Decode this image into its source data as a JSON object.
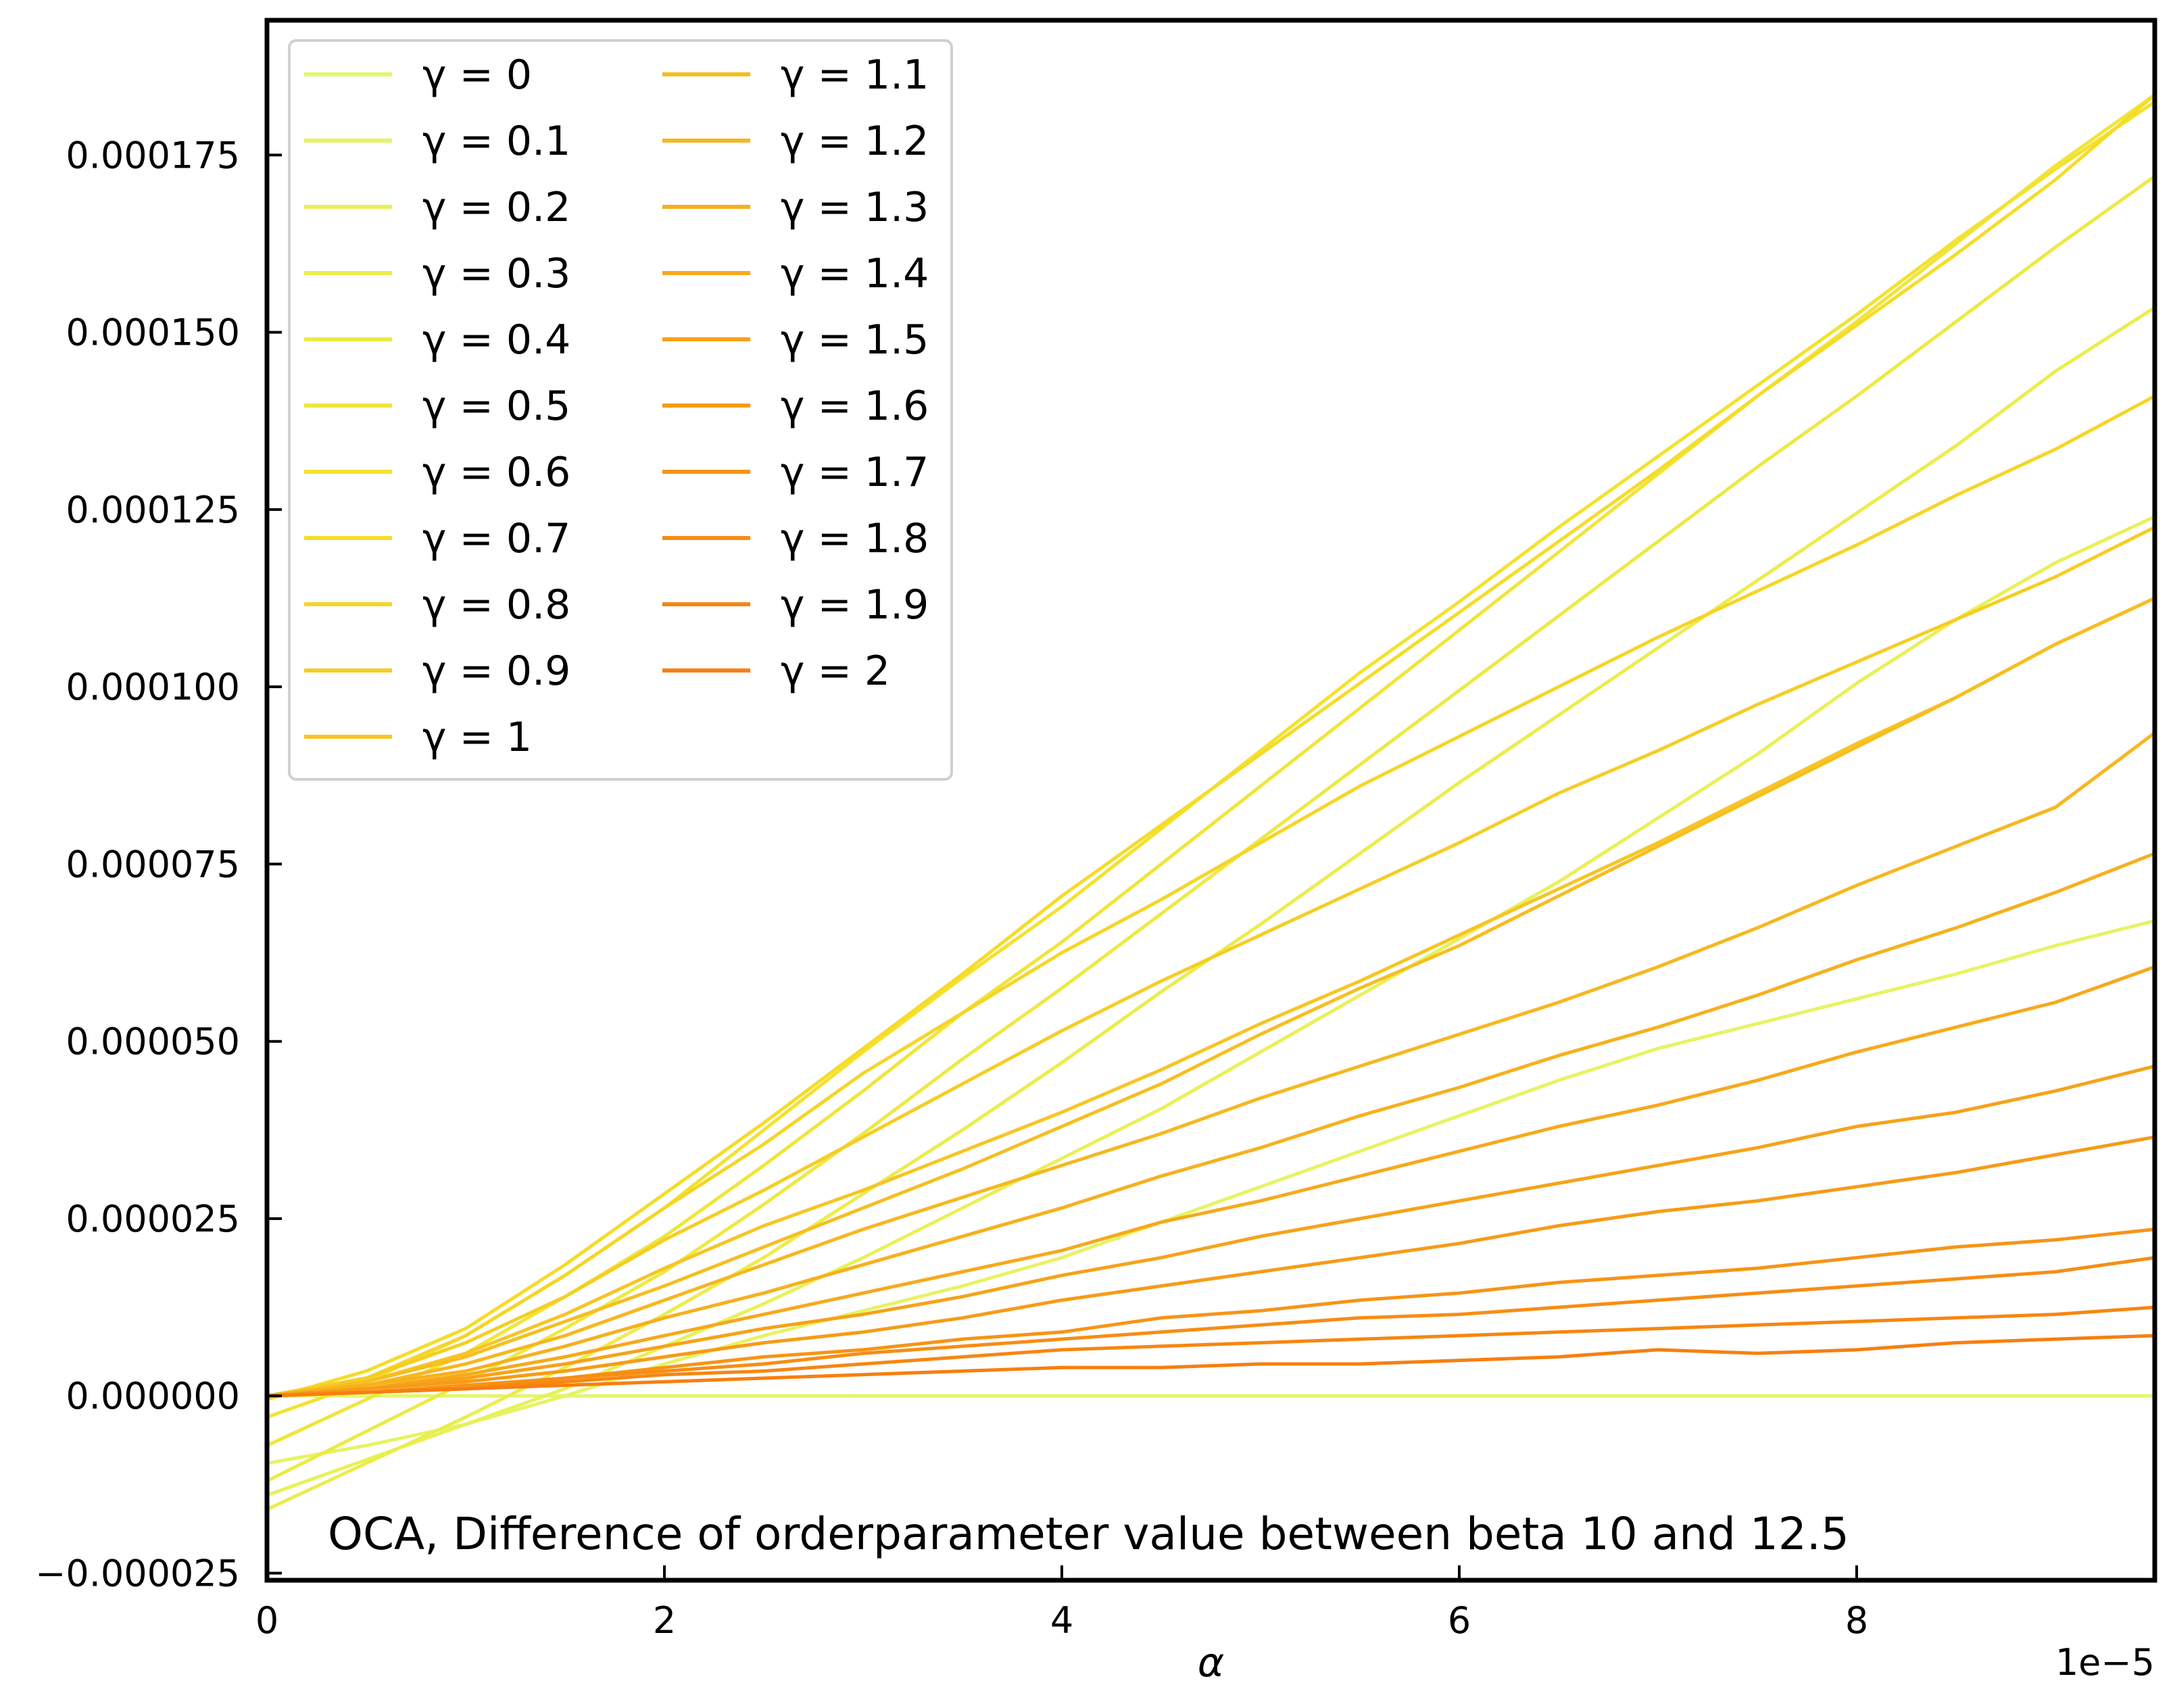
{
  "chart_data": {
    "type": "line",
    "title": "",
    "annotation": "OCA, Difference of orderparameter value between beta 10 and 12.5",
    "xlabel": "α",
    "ylabel": "",
    "x_offset_label": "1e−5",
    "xlim": [
      0,
      9.5
    ],
    "ylim": [
      -2.6e-05,
      0.000194
    ],
    "x_ticks": [
      0,
      2,
      4,
      6,
      8
    ],
    "x_tick_labels": [
      "0",
      "2",
      "4",
      "6",
      "8"
    ],
    "y_ticks": [
      -2.5e-05,
      0,
      2.5e-05,
      5e-05,
      7.5e-05,
      0.0001,
      0.000125,
      0.00015,
      0.000175
    ],
    "y_tick_labels": [
      "−0.000025",
      "0.000000",
      "0.000025",
      "0.000050",
      "0.000075",
      "0.000100",
      "0.000125",
      "0.000150",
      "0.000175"
    ],
    "grid": false,
    "legend_position": "top-left",
    "legend_columns": 2,
    "x": [
      0,
      0.5,
      1,
      1.5,
      2,
      2.5,
      3,
      3.5,
      4,
      4.5,
      5,
      5.5,
      6,
      6.5,
      7,
      7.5,
      8,
      8.5,
      9,
      9.5
    ],
    "series": [
      {
        "name": "γ = 0",
        "color": "#e3f66c",
        "values": [
          0.0,
          0.0,
          0.0,
          0.0,
          0.0,
          0.0,
          0.0,
          0.0,
          0.0,
          0.0,
          0.0,
          0.0,
          0.0,
          0.0,
          0.0,
          0.0,
          0.0,
          0.0,
          0.0,
          0.0
        ]
      },
      {
        "name": "γ = 0.1",
        "color": "#e6f462",
        "values": [
          -9.5e-06,
          -7e-06,
          -4e-06,
          0.0,
          4.5e-06,
          8.5e-06,
          1.2e-05,
          1.55e-05,
          1.95e-05,
          2.45e-05,
          2.95e-05,
          3.45e-05,
          3.95e-05,
          4.45e-05,
          4.9e-05,
          5.25e-05,
          5.6e-05,
          5.95e-05,
          6.35e-05,
          6.7e-05
        ]
      },
      {
        "name": "γ = 0.2",
        "color": "#e9f157",
        "values": [
          -1.4e-05,
          -9e-06,
          -4e-06,
          1e-06,
          7e-06,
          1.3e-05,
          1.95e-05,
          2.65e-05,
          3.35e-05,
          4.05e-05,
          4.85e-05,
          5.65e-05,
          6.45e-05,
          7.25e-05,
          8.15e-05,
          9.05e-05,
          0.0001005,
          0.0001095,
          0.0001175,
          0.000124
        ]
      },
      {
        "name": "γ = 0.3",
        "color": "#ebed4c",
        "values": [
          -1.6e-05,
          -9.5e-06,
          -3e-06,
          4e-06,
          1.15e-05,
          1.95e-05,
          2.85e-05,
          3.75e-05,
          4.7e-05,
          5.7e-05,
          6.65e-05,
          7.65e-05,
          8.65e-05,
          9.6e-05,
          0.0001055,
          0.000115,
          0.0001245,
          0.000134,
          0.0001445,
          0.0001535
        ]
      },
      {
        "name": "γ = 0.4",
        "color": "#ede944",
        "values": [
          -1.2e-05,
          -5e-06,
          2e-06,
          9.5e-06,
          1.75e-05,
          2.7e-05,
          3.7e-05,
          4.75e-05,
          5.75e-05,
          6.8e-05,
          7.85e-05,
          8.9e-05,
          9.95e-05,
          0.00011,
          0.0001205,
          0.000131,
          0.000141,
          0.0001515,
          0.000162,
          0.000172
        ]
      },
      {
        "name": "γ = 0.5",
        "color": "#f0e53a",
        "values": [
          -7e-06,
          -5e-07,
          6e-06,
          1.4e-05,
          2.25e-05,
          3.25e-05,
          4.3e-05,
          5.4e-05,
          6.4e-05,
          7.5e-05,
          8.6e-05,
          9.7e-05,
          0.000108,
          0.000119,
          0.00013,
          0.000141,
          0.0001515,
          0.0001625,
          0.0001735,
          0.0001835
        ]
      },
      {
        "name": "γ = 0.6",
        "color": "#f3e22e",
        "values": [
          -3e-06,
          2e-06,
          8.5e-06,
          1.7e-05,
          2.65e-05,
          3.75e-05,
          4.85e-05,
          5.9e-05,
          6.9e-05,
          8e-05,
          9.1e-05,
          0.000102,
          0.000112,
          0.0001225,
          0.0001325,
          0.0001425,
          0.0001525,
          0.000163,
          0.000173,
          0.0001825
        ]
      },
      {
        "name": "γ = 0.7",
        "color": "#f5dc28",
        "values": [
          -5e-07,
          3.5e-06,
          9.5e-06,
          1.85e-05,
          2.85e-05,
          3.85e-05,
          4.9e-05,
          5.95e-05,
          7.05e-05,
          8.05e-05,
          9.05e-05,
          0.0001005,
          0.0001105,
          0.0001205,
          0.0001305,
          0.000141,
          0.000151,
          0.000161,
          0.0001715,
          0.0001835
        ]
      },
      {
        "name": "γ = 0.8",
        "color": "#f6d526",
        "values": [
          0.0,
          2.5e-06,
          8.5e-06,
          1.7e-05,
          2.65e-05,
          3.55e-05,
          4.55e-05,
          5.4e-05,
          6.25e-05,
          7e-05,
          7.8e-05,
          8.6e-05,
          9.3e-05,
          0.0001,
          0.000107,
          0.0001135,
          0.00012,
          0.000127,
          0.0001335,
          0.000141
        ]
      },
      {
        "name": "γ = 0.9",
        "color": "#f6cd24",
        "values": [
          0.0,
          2.5e-06,
          7.5e-06,
          1.4e-05,
          2.2e-05,
          2.9e-05,
          3.65e-05,
          4.4e-05,
          5.15e-05,
          5.85e-05,
          6.5e-05,
          7.15e-05,
          7.8e-05,
          8.5e-05,
          9.1e-05,
          9.75e-05,
          0.0001035,
          0.0001095,
          0.0001155,
          0.0001225
        ]
      },
      {
        "name": "γ = 1",
        "color": "#f7c523",
        "values": [
          0.0,
          2e-06,
          6e-06,
          1.15e-05,
          1.8e-05,
          2.4e-05,
          2.9e-05,
          3.45e-05,
          4e-05,
          4.6e-05,
          5.25e-05,
          5.85e-05,
          6.5e-05,
          7.15e-05,
          7.8e-05,
          8.5e-05,
          9.2e-05,
          9.85e-05,
          0.000106,
          0.0001125
        ]
      },
      {
        "name": "γ = 1.1",
        "color": "#f7be21",
        "values": [
          0.0,
          2e-06,
          5.5e-06,
          1.05e-05,
          1.55e-05,
          2.1e-05,
          2.65e-05,
          3.2e-05,
          3.8e-05,
          4.4e-05,
          5.1e-05,
          5.75e-05,
          6.35e-05,
          7.05e-05,
          7.75e-05,
          8.45e-05,
          9.15e-05,
          9.85e-05,
          0.000106,
          0.0001125
        ]
      },
      {
        "name": "γ = 1.2",
        "color": "#f7b71f",
        "values": [
          0.0,
          1.5e-06,
          4.5e-06,
          8.5e-06,
          1.35e-05,
          1.85e-05,
          2.35e-05,
          2.8e-05,
          3.25e-05,
          3.7e-05,
          4.2e-05,
          4.65e-05,
          5.1e-05,
          5.55e-05,
          6.05e-05,
          6.6e-05,
          7.2e-05,
          7.75e-05,
          8.3e-05,
          9.35e-05
        ]
      },
      {
        "name": "γ = 1.3",
        "color": "#f7b01d",
        "values": [
          0.0,
          1.5e-06,
          3.5e-06,
          7e-06,
          1.1e-05,
          1.45e-05,
          1.85e-05,
          2.25e-05,
          2.65e-05,
          3.1e-05,
          3.5e-05,
          3.95e-05,
          4.35e-05,
          4.8e-05,
          5.2e-05,
          5.65e-05,
          6.15e-05,
          6.6e-05,
          7.1e-05,
          7.65e-05
        ]
      },
      {
        "name": "γ = 1.4",
        "color": "#f7a91b",
        "values": [
          0.0,
          1e-06,
          3e-06,
          5.5e-06,
          8.5e-06,
          1.15e-05,
          1.45e-05,
          1.75e-05,
          2.05e-05,
          2.45e-05,
          2.75e-05,
          3.1e-05,
          3.45e-05,
          3.8e-05,
          4.1e-05,
          4.45e-05,
          4.85e-05,
          5.2e-05,
          5.55e-05,
          6.05e-05
        ]
      },
      {
        "name": "γ = 1.5",
        "color": "#f7a219",
        "values": [
          0.0,
          1e-06,
          2.5e-06,
          4.5e-06,
          7e-06,
          9.5e-06,
          1.15e-05,
          1.4e-05,
          1.7e-05,
          1.95e-05,
          2.25e-05,
          2.5e-05,
          2.75e-05,
          3e-05,
          3.25e-05,
          3.5e-05,
          3.8e-05,
          4e-05,
          4.3e-05,
          4.65e-05
        ]
      },
      {
        "name": "γ = 1.6",
        "color": "#f79b17",
        "values": [
          0.0,
          1e-06,
          2e-06,
          3.5e-06,
          5.5e-06,
          7.5e-06,
          9e-06,
          1.1e-05,
          1.35e-05,
          1.55e-05,
          1.75e-05,
          1.95e-05,
          2.15e-05,
          2.4e-05,
          2.6e-05,
          2.75e-05,
          2.95e-05,
          3.15e-05,
          3.4e-05,
          3.65e-05
        ]
      },
      {
        "name": "γ = 1.7",
        "color": "#f79416",
        "values": [
          0.0,
          5e-07,
          1.5e-06,
          2.5e-06,
          4e-06,
          5.5e-06,
          6.5e-06,
          8e-06,
          9e-06,
          1.1e-05,
          1.2e-05,
          1.35e-05,
          1.45e-05,
          1.6e-05,
          1.7e-05,
          1.8e-05,
          1.95e-05,
          2.1e-05,
          2.2e-05,
          2.35e-05
        ]
      },
      {
        "name": "γ = 1.8",
        "color": "#f78d14",
        "values": [
          0.0,
          5e-07,
          1e-06,
          2.5e-06,
          3.5e-06,
          4.5e-06,
          6e-06,
          7e-06,
          8e-06,
          9e-06,
          1e-05,
          1.1e-05,
          1.15e-05,
          1.25e-05,
          1.35e-05,
          1.45e-05,
          1.55e-05,
          1.65e-05,
          1.75e-05,
          1.95e-05
        ]
      },
      {
        "name": "γ = 1.9",
        "color": "#f78612",
        "values": [
          0.0,
          5e-07,
          1e-06,
          2e-06,
          3e-06,
          3.5e-06,
          4.5e-06,
          5.5e-06,
          6.5e-06,
          7e-06,
          7.5e-06,
          8e-06,
          8.5e-06,
          9e-06,
          9.5e-06,
          1e-05,
          1.05e-05,
          1.1e-05,
          1.15e-05,
          1.25e-05
        ]
      },
      {
        "name": "γ = 2",
        "color": "#f77f10",
        "values": [
          0.0,
          5e-07,
          1e-06,
          1.5e-06,
          2e-06,
          2.5e-06,
          3e-06,
          3.5e-06,
          4e-06,
          4e-06,
          4.5e-06,
          4.5e-06,
          5e-06,
          5.5e-06,
          6.5e-06,
          6e-06,
          6.5e-06,
          7.5e-06,
          8e-06,
          8.5e-06
        ]
      }
    ]
  }
}
